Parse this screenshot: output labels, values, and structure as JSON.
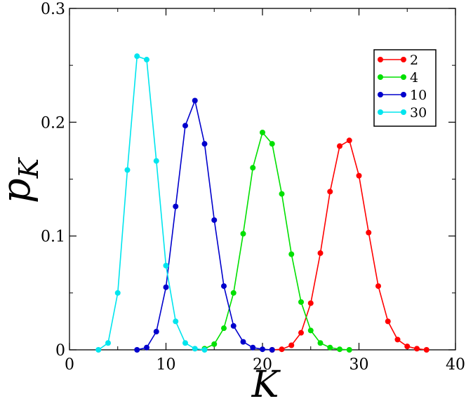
{
  "chart_data": {
    "type": "line",
    "title": "",
    "xlabel": "K",
    "ylabel": "p",
    "ylabel_subscript": "K",
    "xlim": [
      0,
      40
    ],
    "ylim": [
      0,
      0.3
    ],
    "xticks": [
      0,
      10,
      20,
      30,
      40
    ],
    "yticks": [
      0,
      0.1,
      0.2,
      0.3
    ],
    "xtick_labels": [
      "0",
      "10",
      "20",
      "30",
      "40"
    ],
    "ytick_labels": [
      "0",
      "0.1",
      "0.2",
      "0.3"
    ],
    "grid": false,
    "legend_position": "top-right",
    "series": [
      {
        "name": "2",
        "color": "#ff0000",
        "x": [
          21,
          22,
          23,
          24,
          25,
          26,
          27,
          28,
          29,
          30,
          31,
          32,
          33,
          34,
          35,
          36,
          37
        ],
        "y": [
          0.0,
          0.0005,
          0.004,
          0.015,
          0.041,
          0.085,
          0.139,
          0.179,
          0.184,
          0.153,
          0.103,
          0.056,
          0.025,
          0.009,
          0.003,
          0.001,
          0.0
        ]
      },
      {
        "name": "4",
        "color": "#00e000",
        "x": [
          14,
          15,
          16,
          17,
          18,
          19,
          20,
          21,
          22,
          23,
          24,
          25,
          26,
          27,
          28,
          29
        ],
        "y": [
          0.001,
          0.005,
          0.019,
          0.05,
          0.102,
          0.16,
          0.191,
          0.181,
          0.137,
          0.084,
          0.042,
          0.017,
          0.006,
          0.002,
          0.0005,
          0.0
        ]
      },
      {
        "name": "10",
        "color": "#0000cc",
        "x": [
          7,
          8,
          9,
          10,
          11,
          12,
          13,
          14,
          15,
          16,
          17,
          18,
          19,
          20,
          21
        ],
        "y": [
          0.0,
          0.002,
          0.016,
          0.055,
          0.126,
          0.197,
          0.219,
          0.181,
          0.114,
          0.056,
          0.021,
          0.007,
          0.002,
          0.0005,
          0.0
        ]
      },
      {
        "name": "30",
        "color": "#00e5ee",
        "x": [
          3,
          4,
          5,
          6,
          7,
          8,
          9,
          10,
          11,
          12,
          13,
          14
        ],
        "y": [
          0.0,
          0.006,
          0.05,
          0.158,
          0.258,
          0.255,
          0.166,
          0.074,
          0.025,
          0.006,
          0.001,
          0.0
        ]
      }
    ]
  }
}
